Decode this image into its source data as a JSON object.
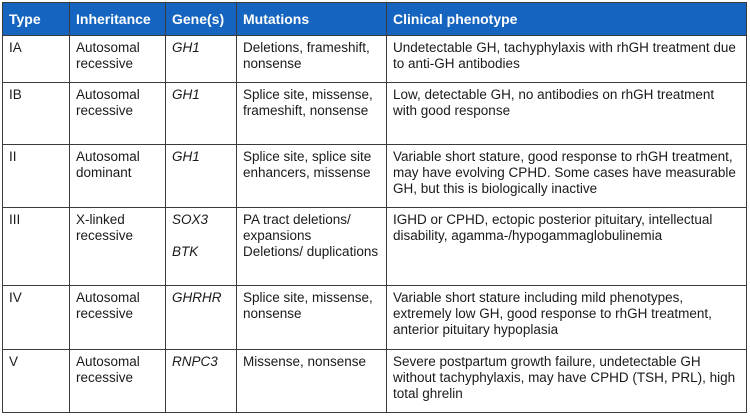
{
  "table": {
    "headers": {
      "type": "Type",
      "inheritance": "Inheritance",
      "genes": "Gene(s)",
      "mutations": "Mutations",
      "phenotype": "Clinical phenotype"
    },
    "rows": [
      {
        "type": "IA",
        "inheritance": "Autosomal recessive",
        "genes": [
          "GH1"
        ],
        "mutations": [
          "Deletions, frameshift, nonsense"
        ],
        "phenotype": "Undetectable GH, tachyphylaxis with rhGH treatment due to anti-GH antibodies"
      },
      {
        "type": "IB",
        "inheritance": "Autosomal recessive",
        "genes": [
          "GH1"
        ],
        "mutations": [
          "Splice site, missense, frameshift, nonsense"
        ],
        "phenotype": "Low, detectable GH, no antibodies on rhGH treatment with good response"
      },
      {
        "type": "II",
        "inheritance": "Autosomal dominant",
        "genes": [
          "GH1"
        ],
        "mutations": [
          "Splice site, splice site enhancers, missense"
        ],
        "phenotype": "Variable short stature, good response to rhGH treatment, may have evolving CPHD. Some cases have measurable GH, but this is biologically inactive"
      },
      {
        "type": "III",
        "inheritance": "X-linked recessive",
        "genes": [
          "SOX3",
          "BTK"
        ],
        "mutations": [
          "PA tract deletions/ expansions",
          "Deletions/ duplications"
        ],
        "phenotype": "IGHD or CPHD, ectopic posterior pituitary,  intellectual disability, agamma-/hypogammaglobulinemia"
      },
      {
        "type": "IV",
        "inheritance": "Autosomal recessive",
        "genes": [
          "GHRHR"
        ],
        "mutations": [
          "Splice site, missense, nonsense"
        ],
        "phenotype": "Variable short stature including mild phenotypes, extremely low GH, good response to rhGH treatment, anterior pituitary hypoplasia"
      },
      {
        "type": "V",
        "inheritance": "Autosomal recessive",
        "genes": [
          "RNPC3"
        ],
        "mutations": [
          "Missense, nonsense"
        ],
        "phenotype": "Severe postpartum growth failure, undetectable GH without tachyphylaxis, may have CPHD (TSH, PRL), high total ghrelin"
      }
    ]
  },
  "colors": {
    "header_bg": "#1565c0",
    "header_text": "#ffffff",
    "border": "#3a3a3a"
  }
}
